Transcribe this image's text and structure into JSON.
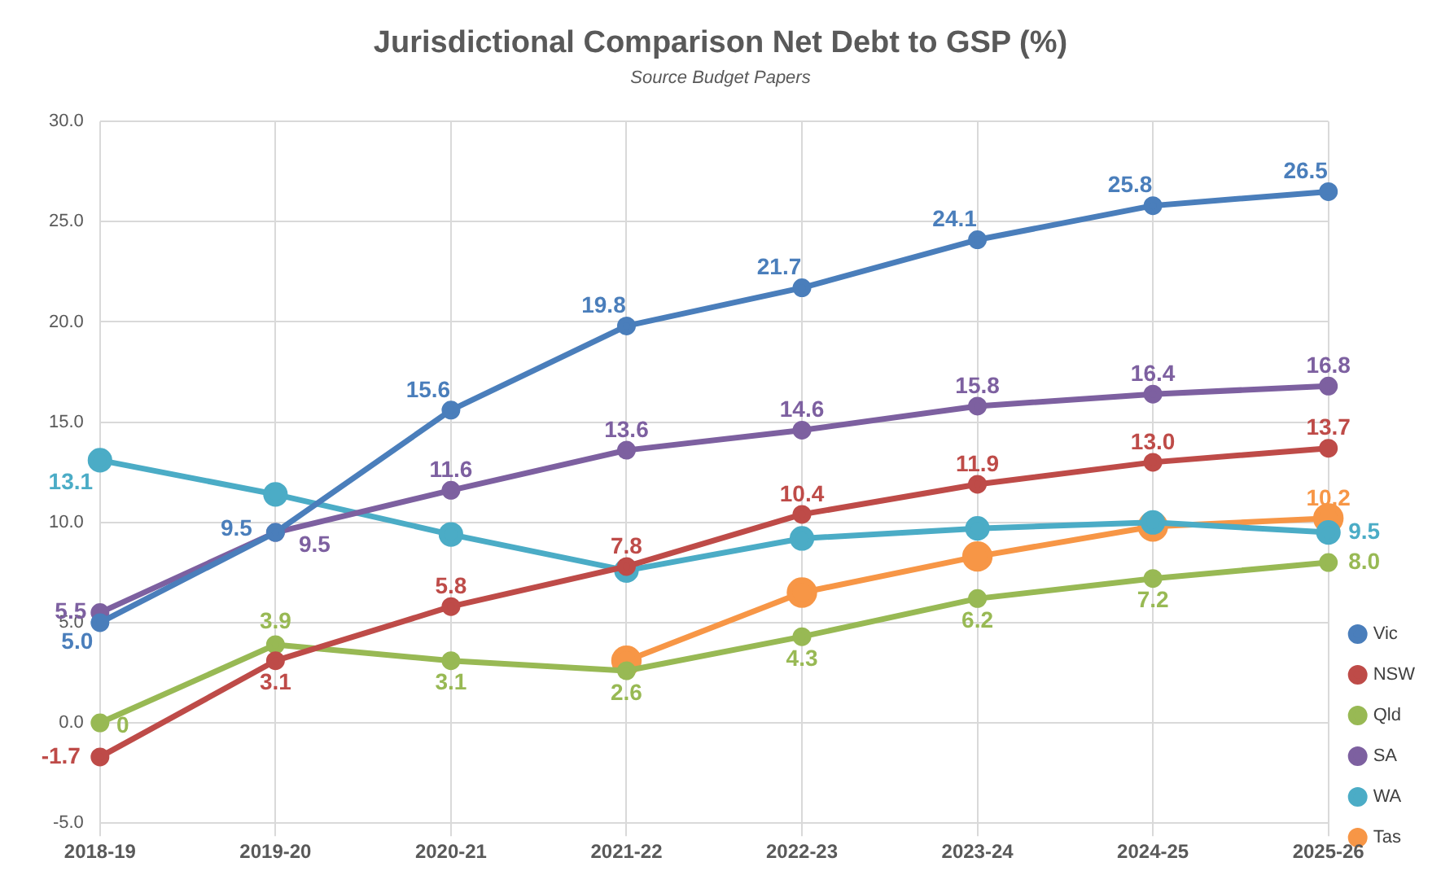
{
  "chart_data": {
    "type": "line",
    "title": "Jurisdictional Comparison Net Debt to GSP (%)",
    "subtitle": "Source Budget Papers",
    "categories": [
      "2018-19",
      "2019-20",
      "2020-21",
      "2021-22",
      "2022-23",
      "2023-24",
      "2024-25",
      "2025-26"
    ],
    "series": [
      {
        "name": "Vic",
        "color": "#4a7ebb",
        "values": [
          5.0,
          9.5,
          15.6,
          19.8,
          21.7,
          24.1,
          25.8,
          26.5
        ],
        "value_labels": [
          "5.0",
          "9.5",
          "15.6",
          "19.8",
          "21.7",
          "24.1",
          "25.8",
          "26.5"
        ]
      },
      {
        "name": "NSW",
        "color": "#be4b48",
        "values": [
          -1.7,
          3.1,
          5.8,
          7.8,
          10.4,
          11.9,
          13.0,
          13.7
        ],
        "value_labels": [
          "-1.7",
          "3.1",
          "5.8",
          "7.8",
          "10.4",
          "11.9",
          "13.0",
          "13.7"
        ]
      },
      {
        "name": "Qld",
        "color": "#98b954",
        "values": [
          0,
          3.9,
          3.1,
          2.6,
          4.3,
          6.2,
          7.2,
          8.0
        ],
        "value_labels": [
          "0",
          "3.9",
          "3.1",
          "2.6",
          "4.3",
          "6.2",
          "7.2",
          "8.0"
        ]
      },
      {
        "name": "SA",
        "color": "#7d60a0",
        "values": [
          5.5,
          9.5,
          11.6,
          13.6,
          14.6,
          15.8,
          16.4,
          16.8
        ],
        "value_labels": [
          "5.5",
          "9.5",
          "11.6",
          "13.6",
          "14.6",
          "15.8",
          "16.4",
          "16.8"
        ]
      },
      {
        "name": "WA",
        "color": "#4bacc6",
        "values": [
          13.1,
          11.4,
          9.4,
          7.6,
          9.2,
          9.7,
          10.0,
          9.5
        ],
        "value_labels": [
          "13.1",
          null,
          null,
          null,
          null,
          null,
          null,
          "9.5"
        ]
      },
      {
        "name": "Tas",
        "color": "#f79646",
        "values": [
          null,
          null,
          null,
          3.1,
          6.5,
          8.3,
          9.8,
          10.2
        ],
        "value_labels": [
          null,
          null,
          null,
          null,
          null,
          null,
          null,
          "10.2"
        ]
      }
    ],
    "ylim": [
      -5,
      30
    ],
    "yticks": [
      {
        "value": -5,
        "label": "-5.0"
      },
      {
        "value": 0,
        "label": "0.0"
      },
      {
        "value": 5,
        "label": "5.0"
      },
      {
        "value": 10,
        "label": "10.0"
      },
      {
        "value": 15,
        "label": "15.0"
      },
      {
        "value": 20,
        "label": "20.0"
      },
      {
        "value": 25,
        "label": "25.0"
      },
      {
        "value": 30,
        "label": "30.0"
      }
    ],
    "grid": true,
    "legend": "right",
    "marker": "circle",
    "line_style": "solid"
  }
}
